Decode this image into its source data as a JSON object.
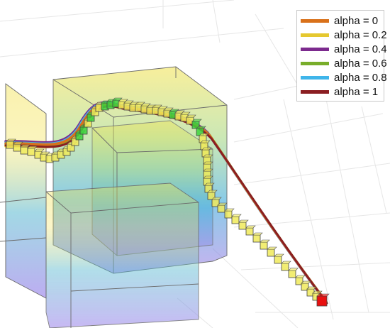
{
  "legend": {
    "items": [
      {
        "label": "alpha = 0",
        "color": "#d9711a"
      },
      {
        "label": "alpha = 0.2",
        "color": "#e5c830"
      },
      {
        "label": "alpha = 0.4",
        "color": "#7c2a8e"
      },
      {
        "label": "alpha = 0.6",
        "color": "#78ad2a"
      },
      {
        "label": "alpha = 0.8",
        "color": "#3fb5ea"
      },
      {
        "label": "alpha = 1",
        "color": "#8b1e22"
      }
    ]
  },
  "markers": {
    "path_color": "#f0ea5a",
    "waypoint_color": "#3cd23c",
    "goal_color": "#e81010"
  },
  "obstacle_gradient": [
    "#f2e24a",
    "#88d0a0",
    "#38a8d8",
    "#a080e8"
  ]
}
